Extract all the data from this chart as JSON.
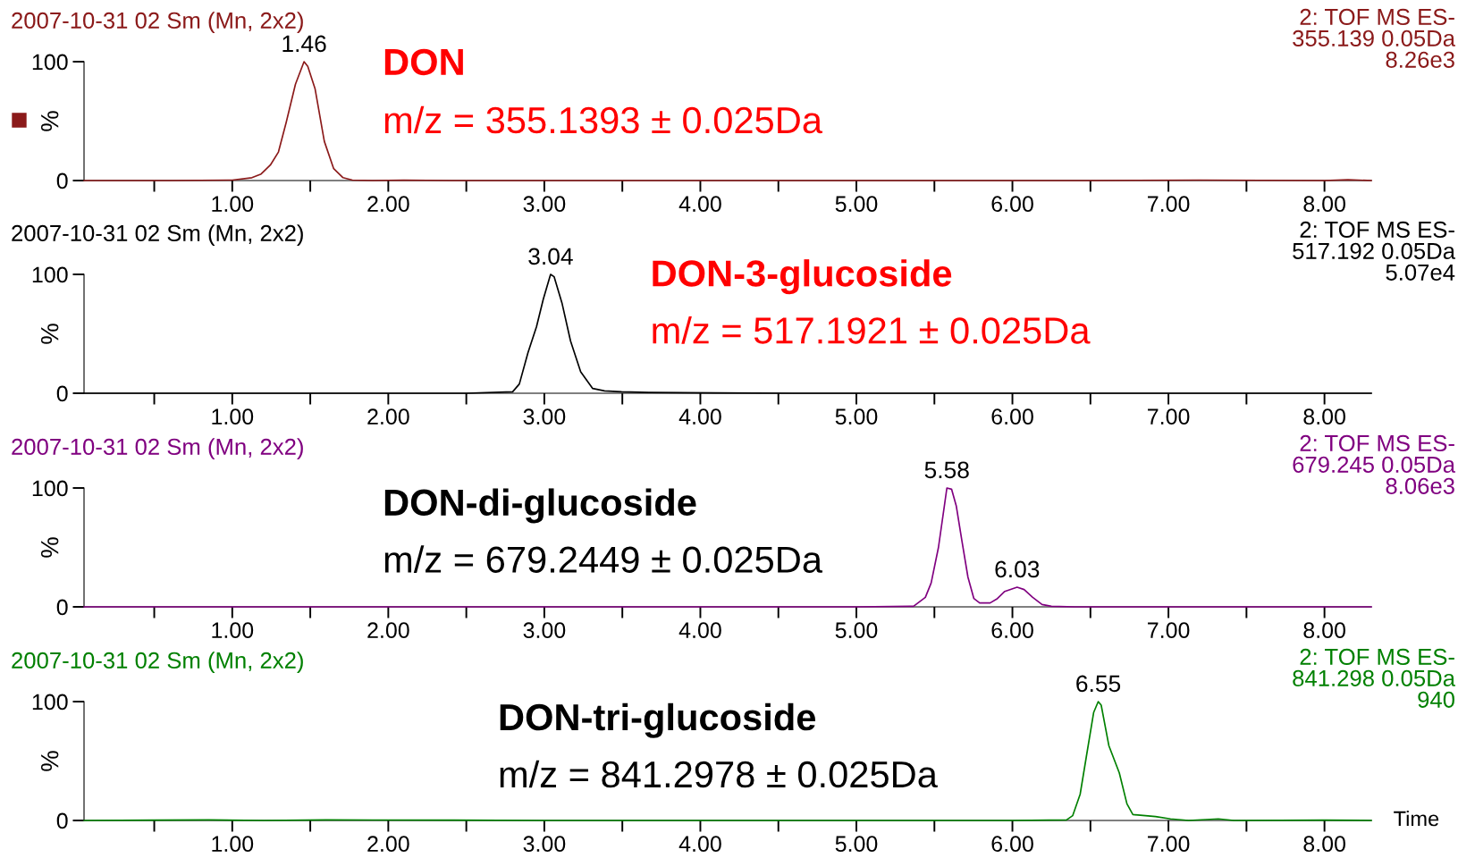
{
  "chart_data": [
    {
      "type": "line",
      "title": "2007-10-31 02 Sm (Mn, 2x2)",
      "subtitle": "2: TOF MS ES-\n355.139 0.05Da\n8.26e3",
      "ylabel": "%",
      "annotations": [
        {
          "text": "1.46",
          "x": 1.46,
          "y": 100
        },
        "DON",
        "m/z = 355.1393 ± 0.025Da"
      ],
      "series": [
        {
          "color": "#8b1a1a",
          "x": [
            0.05,
            0.6,
            1.0,
            1.126,
            1.185,
            1.244,
            1.296,
            1.346,
            1.405,
            1.46,
            1.484,
            1.531,
            1.59,
            1.65,
            1.71,
            1.77,
            1.9,
            2.1,
            2.4,
            3.5,
            5.0,
            6.5,
            7.2,
            8.0,
            8.15,
            8.3
          ],
          "values": [
            0,
            0,
            0.4,
            2.4,
            5.5,
            13,
            24,
            49,
            81,
            100,
            96,
            77,
            33,
            10,
            2.4,
            0.4,
            0,
            0.4,
            0,
            0,
            0,
            0,
            0.4,
            0,
            0.6,
            0
          ]
        }
      ],
      "xlim": [
        0.05,
        8.3
      ],
      "ylim": [
        0,
        100
      ],
      "xticks": [
        {
          "value": 0.5,
          "label": null
        },
        {
          "value": 1,
          "label": "1.00"
        },
        {
          "value": 1.5,
          "label": null
        },
        {
          "value": 2,
          "label": "2.00"
        },
        {
          "value": 2.5,
          "label": null
        },
        {
          "value": 3,
          "label": "3.00"
        },
        {
          "value": 3.5,
          "label": null
        },
        {
          "value": 4,
          "label": "4.00"
        },
        {
          "value": 4.5,
          "label": null
        },
        {
          "value": 5,
          "label": "5.00"
        },
        {
          "value": 5.5,
          "label": null
        },
        {
          "value": 6,
          "label": "6.00"
        },
        {
          "value": 6.5,
          "label": null
        },
        {
          "value": 7,
          "label": "7.00"
        },
        {
          "value": 7.5,
          "label": null
        },
        {
          "value": 8,
          "label": "8.00"
        }
      ],
      "yticks": [
        0,
        100
      ]
    },
    {
      "type": "line",
      "title": "2007-10-31 02 Sm (Mn, 2x2)",
      "subtitle": "2: TOF MS ES-\n517.192 0.05Da\n5.07e4",
      "ylabel": "%",
      "annotations": [
        {
          "text": "3.04",
          "x": 3.04,
          "y": 100
        },
        "DON-3-glucoside",
        "m/z = 517.1921 ± 0.025Da"
      ],
      "series": [
        {
          "color": "#000000",
          "x": [
            0.05,
            1.0,
            2.0,
            2.5,
            2.797,
            2.84,
            2.895,
            2.95,
            2.993,
            3.04,
            3.063,
            3.113,
            3.168,
            3.233,
            3.31,
            3.386,
            3.495,
            3.67,
            4.1,
            4.6,
            5.5,
            7.0,
            8.3
          ],
          "values": [
            0,
            0,
            0,
            0,
            1.2,
            7.8,
            34,
            56,
            79,
            100,
            98,
            76,
            44,
            18,
            4,
            2,
            1.2,
            0.6,
            0.3,
            0,
            0,
            0,
            0
          ]
        }
      ],
      "xlim": [
        0.05,
        8.3
      ],
      "ylim": [
        0,
        100
      ],
      "xticks": [
        {
          "value": 0.5,
          "label": null
        },
        {
          "value": 1,
          "label": "1.00"
        },
        {
          "value": 1.5,
          "label": null
        },
        {
          "value": 2,
          "label": "2.00"
        },
        {
          "value": 2.5,
          "label": null
        },
        {
          "value": 3,
          "label": "3.00"
        },
        {
          "value": 3.5,
          "label": null
        },
        {
          "value": 4,
          "label": "4.00"
        },
        {
          "value": 4.5,
          "label": null
        },
        {
          "value": 5,
          "label": "5.00"
        },
        {
          "value": 5.5,
          "label": null
        },
        {
          "value": 6,
          "label": "6.00"
        },
        {
          "value": 6.5,
          "label": null
        },
        {
          "value": 7,
          "label": "7.00"
        },
        {
          "value": 7.5,
          "label": null
        },
        {
          "value": 8,
          "label": "8.00"
        }
      ],
      "yticks": [
        0,
        100
      ]
    },
    {
      "type": "line",
      "title": "2007-10-31 02 Sm (Mn, 2x2)",
      "subtitle": "2: TOF MS ES-\n679.245 0.05Da\n8.06e3",
      "ylabel": "%",
      "annotations": [
        {
          "text": "5.58",
          "x": 5.58,
          "y": 100
        },
        {
          "text": "6.03",
          "x": 6.03,
          "y": 16.5
        },
        "DON-di-glucoside",
        "m/z = 679.2449 ± 0.025Da"
      ],
      "series": [
        {
          "color": "#800080",
          "x": [
            0.05,
            1.9,
            2.0,
            5.0,
            5.366,
            5.442,
            5.479,
            5.526,
            5.564,
            5.58,
            5.61,
            5.64,
            5.677,
            5.715,
            5.753,
            5.79,
            5.857,
            5.904,
            5.951,
            6.03,
            6.075,
            6.13,
            6.19,
            6.25,
            6.4,
            8.3
          ],
          "values": [
            0,
            0,
            0,
            0,
            0.5,
            8,
            20,
            50,
            85,
            100,
            99,
            85,
            55,
            25,
            7,
            3.3,
            3.3,
            7,
            13,
            16.5,
            14.6,
            8,
            2,
            0.5,
            0,
            0
          ]
        }
      ],
      "xlim": [
        0.05,
        8.3
      ],
      "ylim": [
        0,
        100
      ],
      "xticks": [
        {
          "value": 0.5,
          "label": null
        },
        {
          "value": 1,
          "label": "1.00"
        },
        {
          "value": 1.5,
          "label": null
        },
        {
          "value": 2,
          "label": "2.00"
        },
        {
          "value": 2.5,
          "label": null
        },
        {
          "value": 3,
          "label": "3.00"
        },
        {
          "value": 3.5,
          "label": null
        },
        {
          "value": 4,
          "label": "4.00"
        },
        {
          "value": 4.5,
          "label": null
        },
        {
          "value": 5,
          "label": "5.00"
        },
        {
          "value": 5.5,
          "label": null
        },
        {
          "value": 6,
          "label": "6.00"
        },
        {
          "value": 6.5,
          "label": null
        },
        {
          "value": 7,
          "label": "7.00"
        },
        {
          "value": 7.5,
          "label": null
        },
        {
          "value": 8,
          "label": "8.00"
        }
      ],
      "yticks": [
        0,
        100
      ]
    },
    {
      "type": "line",
      "title": "2007-10-31 02 Sm (Mn, 2x2)",
      "subtitle": "2: TOF MS ES-\n841.298 0.05Da\n940",
      "ylabel": "%",
      "xlabel": "Time",
      "annotations": [
        {
          "text": "6.55",
          "x": 6.55,
          "y": 100
        },
        "DON-tri-glucoside",
        "m/z = 841.2978 ± 0.025Da"
      ],
      "series": [
        {
          "color": "#008000",
          "x": [
            0.05,
            0.5,
            0.85,
            1.2,
            1.6,
            1.9,
            2.4,
            3.0,
            4.0,
            5.0,
            6.0,
            6.347,
            6.386,
            6.434,
            6.473,
            6.521,
            6.55,
            6.569,
            6.618,
            6.685,
            6.734,
            6.772,
            6.82,
            6.917,
            7.013,
            7.13,
            7.32,
            7.42,
            8.0,
            8.3
          ],
          "values": [
            0,
            0.3,
            0.5,
            0,
            0.5,
            0.4,
            0.3,
            0,
            0,
            0,
            0,
            0.5,
            4,
            22,
            53,
            91,
            100,
            97,
            63,
            40,
            14,
            5,
            4.4,
            3.3,
            1.3,
            0,
            1.3,
            0,
            0.3,
            0
          ]
        }
      ],
      "xlim": [
        0.05,
        8.3
      ],
      "ylim": [
        0,
        100
      ],
      "xticks": [
        {
          "value": 0.5,
          "label": null
        },
        {
          "value": 1,
          "label": "1.00"
        },
        {
          "value": 1.5,
          "label": null
        },
        {
          "value": 2,
          "label": "2.00"
        },
        {
          "value": 2.5,
          "label": null
        },
        {
          "value": 3,
          "label": "3.00"
        },
        {
          "value": 3.5,
          "label": null
        },
        {
          "value": 4,
          "label": "4.00"
        },
        {
          "value": 4.5,
          "label": null
        },
        {
          "value": 5,
          "label": "5.00"
        },
        {
          "value": 5.5,
          "label": null
        },
        {
          "value": 6,
          "label": "6.00"
        },
        {
          "value": 6.5,
          "label": null
        },
        {
          "value": 7,
          "label": "7.00"
        },
        {
          "value": 7.5,
          "label": null
        },
        {
          "value": 8,
          "label": "8.00"
        }
      ],
      "yticks": [
        0,
        100
      ]
    }
  ]
}
